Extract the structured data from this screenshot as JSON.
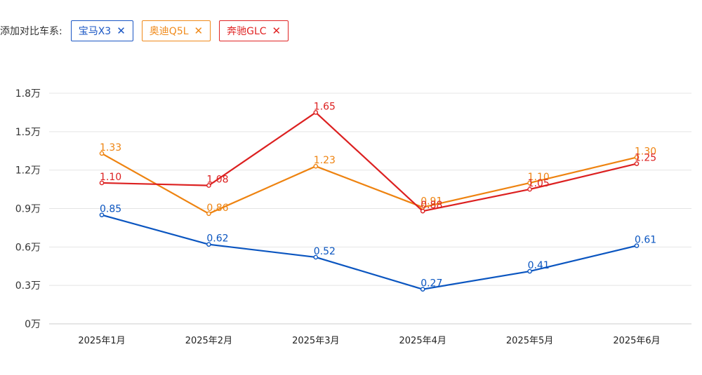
{
  "compare": {
    "label": "已添加对比车系:",
    "tags": [
      {
        "label": "宝马X3",
        "close": "✕",
        "color": "#1a56c4"
      },
      {
        "label": "奥迪Q5L",
        "close": "✕",
        "color": "#f08a1a"
      },
      {
        "label": "奔驰GLC",
        "close": "✕",
        "color": "#e02424"
      }
    ]
  },
  "chart_data": {
    "type": "line",
    "categories": [
      "2025年1月",
      "2025年2月",
      "2025年3月",
      "2025年4月",
      "2025年5月",
      "2025年6月"
    ],
    "series": [
      {
        "name": "宝马X3",
        "color": "#0a55c0",
        "values": [
          0.85,
          0.62,
          0.52,
          0.27,
          0.41,
          0.61
        ]
      },
      {
        "name": "奥迪Q5L",
        "color": "#ee8310",
        "values": [
          1.33,
          0.86,
          1.23,
          0.91,
          1.1,
          1.3
        ]
      },
      {
        "name": "奔驰GLC",
        "color": "#dc2020",
        "values": [
          1.1,
          1.08,
          1.65,
          0.88,
          1.05,
          1.25
        ]
      }
    ],
    "yticks": [
      "0万",
      "0.3万",
      "0.6万",
      "0.9万",
      "1.2万",
      "1.5万",
      "1.8万"
    ],
    "ytick_values": [
      0,
      0.3,
      0.6,
      0.9,
      1.2,
      1.5,
      1.8
    ],
    "ylim": [
      0,
      1.8
    ],
    "grid": true
  }
}
